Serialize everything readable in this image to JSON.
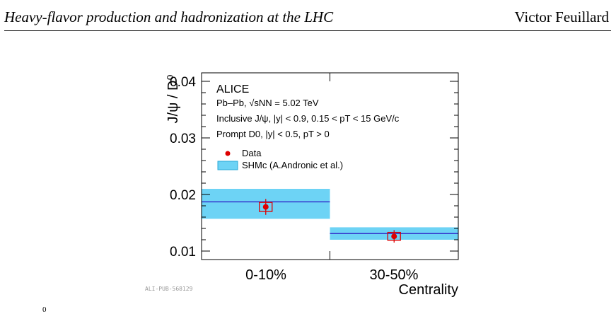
{
  "header": {
    "left_title": "Heavy-flavor production and hadronization at the LHC",
    "right_author": "Victor Feuillard"
  },
  "figure": {
    "pub_id": "ALI-PUB-568129",
    "caption_fragment": "0"
  },
  "chart_data": {
    "type": "scatter",
    "ylabel": "J/ψ / D⁰",
    "xlabel": "Centrality",
    "categories": [
      "0-10%",
      "30-50%"
    ],
    "ylim": [
      0.0085,
      0.0415
    ],
    "yticks": [
      0.01,
      0.02,
      0.03,
      0.04
    ],
    "legend_position": "top-left",
    "annotations": [
      "ALICE",
      "Pb–Pb, √sNN = 5.02 TeV",
      "Inclusive J/ψ, |y| < 0.9, 0.15 < pT < 15 GeV/c",
      "Prompt D0, |y| < 0.5, pT > 0"
    ],
    "series": [
      {
        "name": "Data",
        "marker": "circle",
        "color": "#dd0000",
        "values": [
          0.0178,
          0.0126
        ],
        "stat_err": [
          0.0014,
          0.0011
        ],
        "sys_err": [
          0.0008,
          0.0007
        ]
      },
      {
        "name": "SHMc (A.Andronic et al.)",
        "marker": "band",
        "color": "#6dd3f5",
        "line_color": "#3333cc",
        "values": [
          0.0187,
          0.0131
        ],
        "low": [
          0.0157,
          0.012
        ],
        "high": [
          0.021,
          0.0142
        ]
      }
    ]
  }
}
